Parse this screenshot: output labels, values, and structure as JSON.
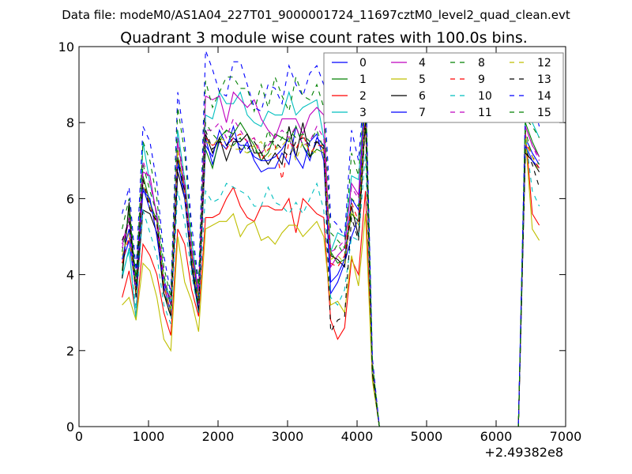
{
  "chart_data": {
    "type": "line",
    "suptitle": "Data file: modeM0/AS1A04_227T01_9000001724_11697cztM0_level2_quad_clean.evt",
    "title": "Quadrant 3 module wise count rates with 100.0s bins.",
    "xlabel": "",
    "ylabel": "",
    "x_offset_label": "+2.49382e8",
    "xlim": [
      0,
      7000
    ],
    "ylim": [
      0,
      10
    ],
    "xticks": [
      0,
      1000,
      2000,
      3000,
      4000,
      5000,
      6000,
      7000
    ],
    "xtick_labels": [
      "0",
      "1000",
      "2000",
      "3000",
      "4000",
      "5000",
      "6000",
      "7000"
    ],
    "yticks": [
      0,
      2,
      4,
      6,
      8,
      10
    ],
    "ytick_labels": [
      "0",
      "2",
      "4",
      "6",
      "8",
      "10"
    ],
    "grid": false,
    "legend_position": "top-right",
    "x_start": 620,
    "x_step": 100,
    "series": [
      {
        "name": "0",
        "color": "#0000ff",
        "style": "solid",
        "values": [
          4.3,
          4.9,
          3.5,
          6.3,
          5.7,
          5.5,
          3.8,
          3.2,
          6.9,
          6.2,
          4.6,
          3.4,
          7.6,
          6.9,
          7.5,
          7.3,
          7.9,
          7.2,
          7.5,
          7.0,
          6.7,
          6.8,
          6.8,
          7.2,
          6.9,
          7.9,
          7.4,
          7.0,
          7.6,
          7.4,
          3.5,
          3.8,
          4.3,
          5.0,
          5.5,
          8.9,
          1.5,
          0,
          0,
          0,
          0,
          0,
          0,
          0,
          0,
          0,
          0,
          0,
          0,
          0,
          0,
          0,
          0,
          0,
          0,
          0,
          0,
          0,
          7.6,
          7.2,
          6.9
        ]
      },
      {
        "name": "1",
        "color": "#008000",
        "style": "solid",
        "values": [
          4.1,
          5.8,
          3.6,
          6.6,
          5.9,
          5.4,
          3.5,
          3.1,
          7.1,
          6.3,
          4.5,
          3.2,
          7.3,
          6.8,
          7.6,
          7.8,
          7.7,
          8.0,
          7.7,
          7.4,
          7.0,
          7.2,
          7.7,
          7.6,
          7.5,
          7.9,
          7.4,
          7.1,
          7.3,
          7.2,
          4.6,
          4.3,
          4.4,
          5.6,
          5.4,
          8.2,
          1.4,
          0,
          0,
          0,
          0,
          0,
          0,
          0,
          0,
          0,
          0,
          0,
          0,
          0,
          0,
          0,
          0,
          0,
          0,
          0,
          0,
          0,
          8.0,
          7.5,
          7.1
        ]
      },
      {
        "name": "2",
        "color": "#ff0000",
        "style": "solid",
        "values": [
          3.4,
          4.1,
          2.9,
          4.8,
          4.5,
          4.0,
          3.0,
          2.4,
          5.2,
          4.8,
          3.6,
          2.9,
          5.5,
          5.5,
          5.6,
          6.0,
          6.3,
          5.8,
          5.5,
          5.4,
          5.8,
          5.8,
          5.7,
          5.7,
          6.0,
          5.1,
          6.0,
          5.8,
          5.6,
          5.5,
          2.8,
          2.3,
          2.6,
          4.4,
          4.0,
          6.2,
          1.3,
          0,
          0,
          0,
          0,
          0,
          0,
          0,
          0,
          0,
          0,
          0,
          0,
          0,
          0,
          0,
          0,
          0,
          0,
          0,
          0,
          0,
          7.8,
          5.6,
          5.3
        ]
      },
      {
        "name": "3",
        "color": "#00bfbf",
        "style": "solid",
        "values": [
          3.9,
          4.7,
          2.8,
          7.5,
          6.4,
          5.6,
          3.9,
          3.3,
          7.8,
          6.5,
          4.9,
          3.5,
          8.2,
          8.1,
          8.8,
          8.5,
          8.5,
          8.8,
          8.2,
          8.0,
          7.9,
          8.3,
          8.2,
          8.2,
          8.8,
          8.2,
          8.4,
          8.5,
          8.6,
          7.6,
          4.6,
          5.1,
          5.0,
          6.6,
          6.5,
          9.0,
          1.6,
          0,
          0,
          0,
          0,
          0,
          0,
          0,
          0,
          0,
          0,
          0,
          0,
          0,
          0,
          0,
          0,
          0,
          0,
          0,
          0,
          0,
          8.2,
          8.0,
          7.6
        ]
      },
      {
        "name": "4",
        "color": "#bf00bf",
        "style": "solid",
        "values": [
          4.8,
          5.5,
          3.4,
          6.7,
          6.6,
          5.5,
          3.6,
          3.4,
          7.5,
          6.3,
          4.6,
          3.6,
          8.7,
          8.6,
          8.7,
          8.0,
          8.8,
          8.6,
          8.4,
          8.6,
          8.1,
          7.8,
          7.6,
          8.1,
          8.1,
          8.1,
          7.7,
          8.2,
          8.4,
          8.2,
          4.2,
          4.5,
          4.7,
          6.4,
          6.1,
          8.8,
          1.5,
          0,
          0,
          0,
          0,
          0,
          0,
          0,
          0,
          0,
          0,
          0,
          0,
          0,
          0,
          0,
          0,
          0,
          0,
          0,
          0,
          0,
          7.9,
          7.4,
          7.1
        ]
      },
      {
        "name": "5",
        "color": "#bfbf00",
        "style": "solid",
        "values": [
          3.2,
          3.4,
          2.8,
          4.3,
          4.1,
          3.4,
          2.3,
          2.0,
          5.0,
          3.8,
          3.3,
          2.5,
          5.2,
          5.3,
          5.4,
          5.4,
          5.6,
          5.0,
          5.3,
          5.4,
          4.9,
          5.0,
          4.8,
          5.1,
          5.3,
          5.3,
          5.0,
          5.2,
          5.4,
          5.0,
          3.2,
          3.3,
          3.0,
          4.5,
          3.7,
          5.6,
          1.2,
          0,
          0,
          0,
          0,
          0,
          0,
          0,
          0,
          0,
          0,
          0,
          0,
          0,
          0,
          0,
          0,
          0,
          0,
          0,
          0,
          0,
          7.6,
          5.2,
          4.9
        ]
      },
      {
        "name": "6",
        "color": "#000000",
        "style": "solid",
        "values": [
          3.9,
          5.9,
          3.4,
          5.7,
          5.6,
          5.1,
          3.5,
          2.9,
          6.7,
          6.0,
          4.2,
          3.0,
          7.7,
          7.2,
          7.6,
          7.0,
          7.5,
          7.5,
          7.7,
          7.2,
          7.2,
          6.9,
          7.2,
          6.9,
          7.9,
          7.1,
          8.0,
          7.1,
          7.5,
          7.3,
          4.5,
          4.4,
          4.2,
          5.8,
          5.0,
          8.1,
          1.4,
          0,
          0,
          0,
          0,
          0,
          0,
          0,
          0,
          0,
          0,
          0,
          0,
          0,
          0,
          0,
          0,
          0,
          0,
          0,
          0,
          0,
          7.2,
          7.0,
          6.7
        ]
      },
      {
        "name": "7",
        "color": "#0000ff",
        "style": "solid",
        "values": [
          4.4,
          5.2,
          3.6,
          6.2,
          6.0,
          5.0,
          3.7,
          3.0,
          7.0,
          6.0,
          4.3,
          3.1,
          7.4,
          7.1,
          7.8,
          7.4,
          7.6,
          7.4,
          7.4,
          7.1,
          7.0,
          7.0,
          7.1,
          7.3,
          7.6,
          7.1,
          6.8,
          7.5,
          7.7,
          7.0,
          3.8,
          4.0,
          4.4,
          6.0,
          5.7,
          8.7,
          1.5,
          0,
          0,
          0,
          0,
          0,
          0,
          0,
          0,
          0,
          0,
          0,
          0,
          0,
          0,
          0,
          0,
          0,
          0,
          0,
          0,
          0,
          7.4,
          7.0,
          6.8
        ]
      },
      {
        "name": "8",
        "color": "#008000",
        "style": "dashed",
        "values": [
          4.6,
          5.6,
          3.9,
          6.9,
          6.2,
          5.6,
          4.0,
          3.2,
          7.5,
          6.5,
          4.7,
          3.4,
          8.0,
          7.7,
          7.5,
          7.8,
          7.4,
          7.6,
          7.2,
          7.3,
          7.1,
          7.8,
          7.3,
          7.6,
          7.8,
          7.6,
          7.7,
          7.5,
          7.8,
          7.3,
          4.5,
          4.8,
          4.5,
          6.0,
          5.8,
          8.4,
          1.5,
          0,
          0,
          0,
          0,
          0,
          0,
          0,
          0,
          0,
          0,
          0,
          0,
          0,
          0,
          0,
          0,
          0,
          0,
          0,
          0,
          0,
          7.8,
          7.1,
          6.9
        ]
      },
      {
        "name": "9",
        "color": "#ff0000",
        "style": "dashed",
        "values": [
          4.3,
          5.0,
          3.5,
          6.5,
          5.8,
          5.3,
          3.7,
          3.0,
          7.2,
          6.2,
          4.5,
          3.2,
          7.6,
          7.4,
          7.5,
          7.3,
          7.6,
          7.7,
          7.5,
          7.6,
          7.0,
          7.3,
          7.4,
          6.5,
          7.5,
          7.3,
          7.7,
          7.2,
          7.4,
          7.4,
          4.3,
          4.2,
          4.5,
          5.9,
          5.4,
          8.0,
          1.5,
          0,
          0,
          0,
          0,
          0,
          0,
          0,
          0,
          0,
          0,
          0,
          0,
          0,
          0,
          0,
          0,
          0,
          0,
          0,
          0,
          0,
          7.5,
          7.1,
          6.8
        ]
      },
      {
        "name": "10",
        "color": "#00bfbf",
        "style": "dashed",
        "values": [
          4.0,
          4.6,
          3.1,
          5.7,
          5.1,
          4.5,
          3.2,
          2.7,
          6.2,
          5.4,
          4.0,
          3.0,
          6.2,
          5.9,
          6.0,
          6.4,
          6.3,
          6.2,
          6.1,
          5.8,
          5.8,
          6.3,
          5.9,
          5.8,
          5.6,
          5.9,
          5.6,
          6.0,
          6.4,
          5.7,
          3.4,
          3.2,
          3.6,
          5.0,
          4.9,
          7.2,
          1.4,
          0,
          0,
          0,
          0,
          0,
          0,
          0,
          0,
          0,
          0,
          0,
          0,
          0,
          0,
          0,
          0,
          0,
          0,
          0,
          0,
          0,
          7.7,
          6.2,
          5.8
        ]
      },
      {
        "name": "11",
        "color": "#bf00bf",
        "style": "dashed",
        "values": [
          4.7,
          5.4,
          3.6,
          7.0,
          6.4,
          5.6,
          3.9,
          3.2,
          7.6,
          6.4,
          4.7,
          3.5,
          7.8,
          7.8,
          8.0,
          7.6,
          8.1,
          7.8,
          7.5,
          7.6,
          7.2,
          7.4,
          7.6,
          7.8,
          7.6,
          7.9,
          7.4,
          7.5,
          7.9,
          7.6,
          4.6,
          4.7,
          4.9,
          6.3,
          6.0,
          8.6,
          1.5,
          0,
          0,
          0,
          0,
          0,
          0,
          0,
          0,
          0,
          0,
          0,
          0,
          0,
          0,
          0,
          0,
          0,
          0,
          0,
          0,
          0,
          7.9,
          7.4,
          7.0
        ]
      },
      {
        "name": "12",
        "color": "#bfbf00",
        "style": "dashed",
        "values": [
          4.5,
          5.1,
          3.5,
          6.4,
          5.8,
          5.4,
          3.8,
          3.0,
          7.3,
          6.1,
          4.4,
          3.3,
          7.5,
          7.4,
          7.6,
          7.5,
          7.3,
          7.3,
          7.2,
          7.4,
          7.5,
          7.1,
          7.3,
          7.4,
          7.6,
          7.0,
          7.5,
          7.3,
          7.2,
          7.3,
          4.4,
          4.5,
          4.3,
          5.7,
          5.3,
          8.3,
          1.5,
          0,
          0,
          0,
          0,
          0,
          0,
          0,
          0,
          0,
          0,
          0,
          0,
          0,
          0,
          0,
          0,
          0,
          0,
          0,
          0,
          0,
          7.6,
          7.1,
          6.7
        ]
      },
      {
        "name": "13",
        "color": "#000000",
        "style": "dashed",
        "values": [
          4.9,
          5.4,
          3.6,
          6.5,
          5.7,
          5.4,
          3.5,
          2.9,
          7.0,
          6.2,
          4.3,
          3.1,
          7.8,
          7.3,
          7.5,
          7.4,
          7.7,
          7.3,
          7.3,
          7.5,
          7.2,
          7.5,
          7.5,
          7.3,
          7.1,
          7.5,
          7.6,
          7.4,
          7.5,
          7.4,
          2.5,
          2.8,
          2.9,
          5.5,
          4.9,
          8.0,
          1.4,
          0,
          0,
          0,
          0,
          0,
          0,
          0,
          0,
          0,
          0,
          0,
          0,
          0,
          0,
          0,
          0,
          0,
          0,
          0,
          0,
          0,
          7.3,
          6.9,
          6.3
        ]
      },
      {
        "name": "14",
        "color": "#0000ff",
        "style": "dashed",
        "values": [
          5.6,
          6.3,
          4.1,
          7.9,
          7.5,
          6.4,
          4.5,
          3.5,
          8.8,
          7.5,
          5.3,
          3.8,
          9.9,
          9.4,
          8.8,
          8.7,
          9.6,
          9.6,
          9.0,
          8.4,
          8.3,
          9.0,
          8.9,
          8.5,
          9.5,
          9.0,
          8.7,
          9.3,
          9.5,
          9.0,
          5.5,
          5.3,
          5.0,
          7.8,
          7.0,
          9.3,
          1.8,
          0,
          0,
          0,
          0,
          0,
          0,
          0,
          0,
          0,
          0,
          0,
          0,
          0,
          0,
          0,
          0,
          0,
          0,
          0,
          0,
          0,
          8.3,
          8.6,
          7.9
        ]
      },
      {
        "name": "15",
        "color": "#008000",
        "style": "dashed",
        "values": [
          5.2,
          6.0,
          3.8,
          7.5,
          7.0,
          6.0,
          4.2,
          3.4,
          8.4,
          7.2,
          5.0,
          3.7,
          9.1,
          8.4,
          8.8,
          9.2,
          9.2,
          8.9,
          8.9,
          8.3,
          9.0,
          8.4,
          9.2,
          8.7,
          8.3,
          9.2,
          8.7,
          8.6,
          9.0,
          8.4,
          5.1,
          4.9,
          4.7,
          7.2,
          6.6,
          9.0,
          1.7,
          0,
          0,
          0,
          0,
          0,
          0,
          0,
          0,
          0,
          0,
          0,
          0,
          0,
          0,
          0,
          0,
          0,
          0,
          0,
          0,
          0,
          8.1,
          7.9,
          7.6
        ]
      }
    ]
  }
}
